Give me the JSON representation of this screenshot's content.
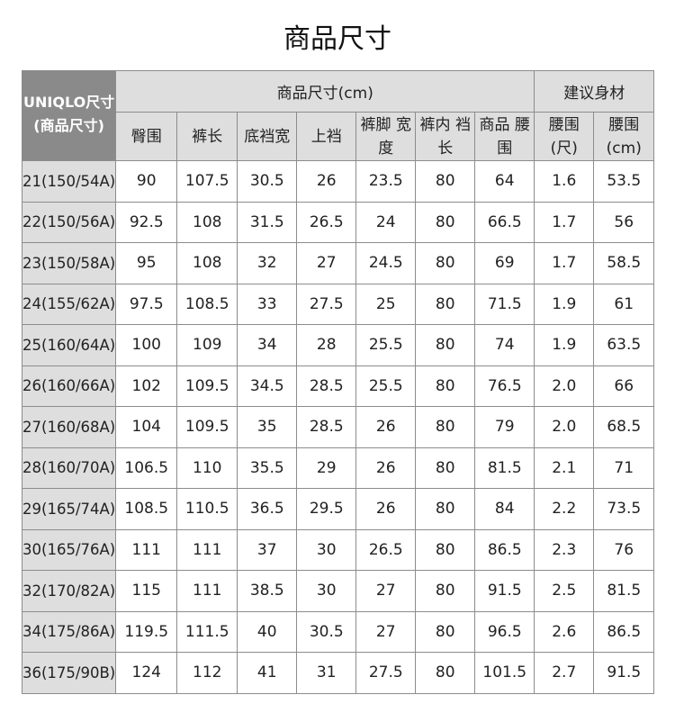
{
  "title": "商品尺寸",
  "header": {
    "corner": "UNIQLO尺寸 (商品尺寸)",
    "group_product": "商品尺寸(cm)",
    "group_body": "建议身材",
    "columns": [
      "臀围",
      "裤长",
      "底裆宽",
      "上裆",
      "裤脚 宽度",
      "裤内 裆长",
      "商品 腰围",
      "腰围 (尺)",
      "腰围 (cm)"
    ]
  },
  "rows": [
    [
      "21(150/54A)",
      "90",
      "107.5",
      "30.5",
      "26",
      "23.5",
      "80",
      "64",
      "1.6",
      "53.5"
    ],
    [
      "22(150/56A)",
      "92.5",
      "108",
      "31.5",
      "26.5",
      "24",
      "80",
      "66.5",
      "1.7",
      "56"
    ],
    [
      "23(150/58A)",
      "95",
      "108",
      "32",
      "27",
      "24.5",
      "80",
      "69",
      "1.7",
      "58.5"
    ],
    [
      "24(155/62A)",
      "97.5",
      "108.5",
      "33",
      "27.5",
      "25",
      "80",
      "71.5",
      "1.9",
      "61"
    ],
    [
      "25(160/64A)",
      "100",
      "109",
      "34",
      "28",
      "25.5",
      "80",
      "74",
      "1.9",
      "63.5"
    ],
    [
      "26(160/66A)",
      "102",
      "109.5",
      "34.5",
      "28.5",
      "25.5",
      "80",
      "76.5",
      "2.0",
      "66"
    ],
    [
      "27(160/68A)",
      "104",
      "109.5",
      "35",
      "28.5",
      "26",
      "80",
      "79",
      "2.0",
      "68.5"
    ],
    [
      "28(160/70A)",
      "106.5",
      "110",
      "35.5",
      "29",
      "26",
      "80",
      "81.5",
      "2.1",
      "71"
    ],
    [
      "29(165/74A)",
      "108.5",
      "110.5",
      "36.5",
      "29.5",
      "26",
      "80",
      "84",
      "2.2",
      "73.5"
    ],
    [
      "30(165/76A)",
      "111",
      "111",
      "37",
      "30",
      "26.5",
      "80",
      "86.5",
      "2.3",
      "76"
    ],
    [
      "32(170/82A)",
      "115",
      "111",
      "38.5",
      "30",
      "27",
      "80",
      "91.5",
      "2.5",
      "81.5"
    ],
    [
      "34(175/86A)",
      "119.5",
      "111.5",
      "40",
      "30.5",
      "27",
      "80",
      "96.5",
      "2.6",
      "86.5"
    ],
    [
      "36(175/90B)",
      "124",
      "112",
      "41",
      "31",
      "27.5",
      "80",
      "101.5",
      "2.7",
      "91.5"
    ]
  ]
}
